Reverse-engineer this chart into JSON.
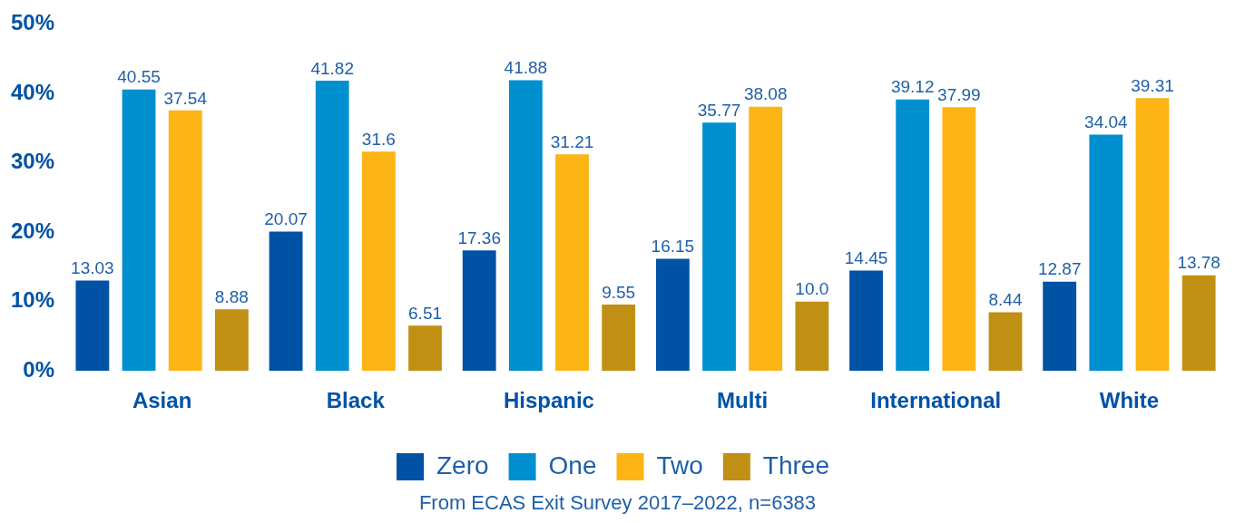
{
  "chart_data": {
    "type": "bar",
    "categories": [
      "Asian",
      "Black",
      "Hispanic",
      "Multi",
      "International",
      "White"
    ],
    "series": [
      {
        "name": "Zero",
        "color": "#0052a5",
        "values": [
          13.03,
          20.07,
          17.36,
          16.15,
          14.45,
          12.87
        ],
        "value_labels": [
          "13.03",
          "20.07",
          "17.36",
          "16.15",
          "14.45",
          "12.87"
        ]
      },
      {
        "name": "One",
        "color": "#0090d0",
        "values": [
          40.55,
          41.82,
          41.88,
          35.77,
          39.12,
          34.04
        ],
        "value_labels": [
          "40.55",
          "41.82",
          "41.88",
          "35.77",
          "39.12",
          "34.04"
        ]
      },
      {
        "name": "Two",
        "color": "#fdb515",
        "values": [
          37.54,
          31.6,
          31.21,
          38.08,
          37.99,
          39.31
        ],
        "value_labels": [
          "37.54",
          "31.6",
          "31.21",
          "38.08",
          "37.99",
          "39.31"
        ]
      },
      {
        "name": "Three",
        "color": "#c09015",
        "values": [
          8.88,
          6.51,
          9.55,
          10.0,
          8.44,
          13.78
        ],
        "value_labels": [
          "8.88",
          "6.51",
          "9.55",
          "10.0",
          "8.44",
          "13.78"
        ]
      }
    ],
    "ylim": [
      0,
      50
    ],
    "yticks": [
      {
        "value": 0,
        "label": "0%"
      },
      {
        "value": 10,
        "label": "10%"
      },
      {
        "value": 20,
        "label": "20%"
      },
      {
        "value": 30,
        "label": "30%"
      },
      {
        "value": 40,
        "label": "40%"
      },
      {
        "value": 50,
        "label": "50%"
      }
    ],
    "grid": false,
    "legend": "bottom",
    "annotations": [
      "From ECAS Exit Survey 2017–2022, n=6383"
    ]
  }
}
